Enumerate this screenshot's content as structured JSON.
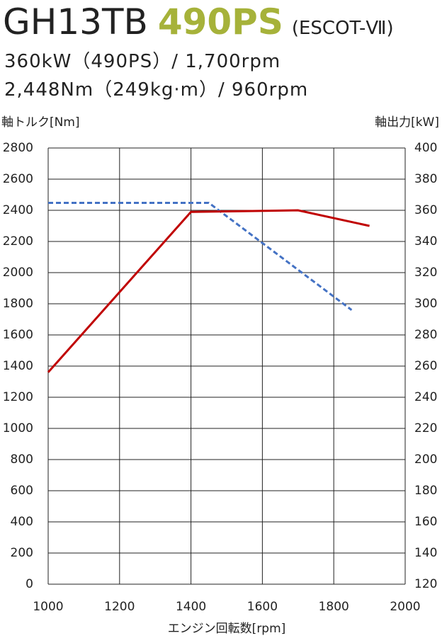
{
  "chart_data": {
    "type": "line",
    "title": "GH13TB",
    "title_highlight": "490PS",
    "title_suffix": "(ESCOT-Ⅶ)",
    "subtitle_lines": [
      "360kW（490PS）/ 1,700rpm",
      "2,448Nm（249kg·m）/ 960rpm"
    ],
    "ylabel": "軸トルク[Nm]",
    "y2label": "軸出力[kW]",
    "xlabel": "エンジン回転数[rpm]",
    "xlim": [
      1000,
      2000
    ],
    "xticks": [
      1000,
      1200,
      1400,
      1600,
      1800,
      2000
    ],
    "ylim": [
      0,
      2800
    ],
    "yticks": [
      0,
      200,
      400,
      600,
      800,
      1000,
      1200,
      1400,
      1600,
      1800,
      2000,
      2200,
      2400,
      2600,
      2800
    ],
    "y2lim": [
      120,
      400
    ],
    "y2ticks": [
      120,
      140,
      160,
      180,
      200,
      220,
      240,
      260,
      280,
      300,
      320,
      340,
      360,
      380,
      400
    ],
    "grid": true,
    "series": [
      {
        "color": "#4472c4",
        "dashed": true,
        "x": [
          1000,
          1450,
          1850
        ],
        "values": [
          2448,
          2448,
          1760
        ]
      },
      {
        "color": "#c00000",
        "dashed": false,
        "axis": "y2",
        "x": [
          1000,
          1400,
          1700,
          1900
        ],
        "values": [
          256,
          359,
          360,
          350
        ]
      }
    ]
  }
}
